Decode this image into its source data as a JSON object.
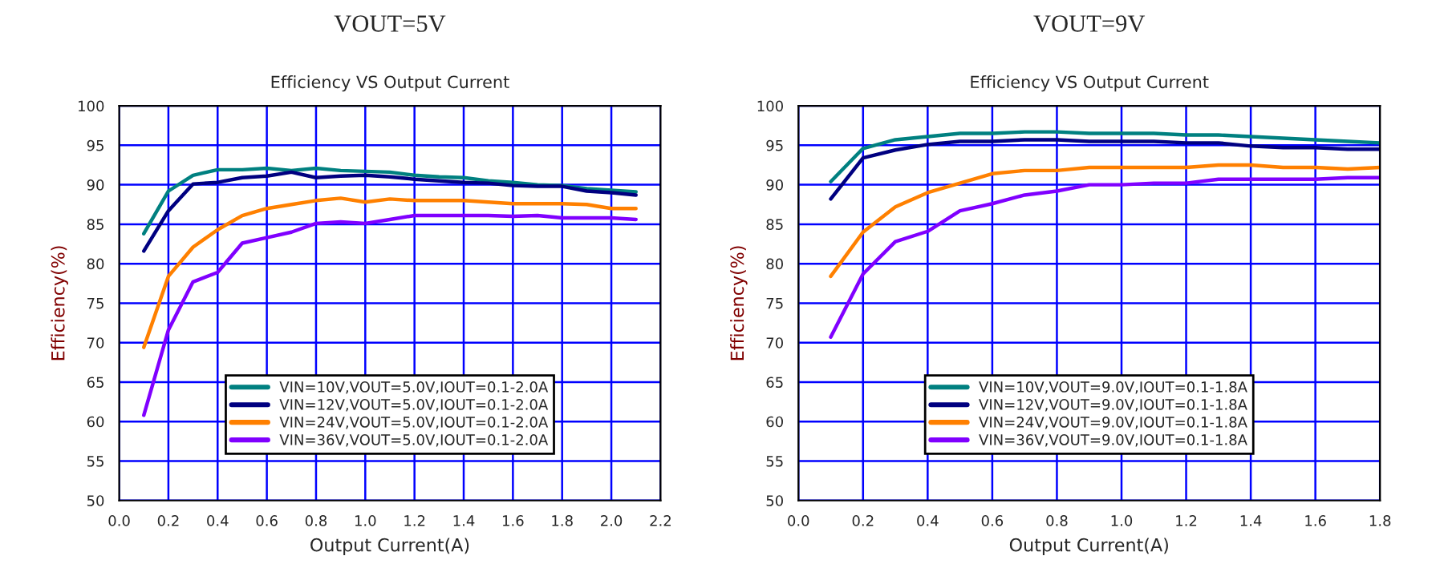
{
  "chart_data": [
    {
      "type": "line",
      "title": "VOUT=5V",
      "subtitle": "Efficiency VS Output Current",
      "xlabel": "Output Current(A)",
      "ylabel": "Efficiency(%)",
      "x": [
        0.1,
        0.2,
        0.3,
        0.4,
        0.5,
        0.6,
        0.7,
        0.8,
        0.9,
        1.0,
        1.1,
        1.2,
        1.3,
        1.4,
        1.5,
        1.6,
        1.7,
        1.8,
        1.9,
        2.0,
        2.1
      ],
      "series": [
        {
          "name": "VIN=10V,VOUT=5.0V,IOUT=0.1-2.0A",
          "color": "#008080",
          "values": [
            83.8,
            89.2,
            91.2,
            91.9,
            91.9,
            92.1,
            91.8,
            92.1,
            91.8,
            91.7,
            91.6,
            91.2,
            91.0,
            90.9,
            90.5,
            90.3,
            90.0,
            89.9,
            89.5,
            89.3,
            89.1
          ]
        },
        {
          "name": "VIN=12V,VOUT=5.0V,IOUT=0.1-2.0A",
          "color": "#000080",
          "values": [
            81.6,
            86.7,
            90.1,
            90.3,
            90.9,
            91.1,
            91.6,
            90.9,
            91.1,
            91.2,
            91.0,
            90.7,
            90.5,
            90.3,
            90.2,
            89.9,
            89.8,
            89.8,
            89.2,
            89.0,
            88.7
          ]
        },
        {
          "name": "VIN=24V,VOUT=5.0V,IOUT=0.1-2.0A",
          "color": "#ff8000",
          "values": [
            69.4,
            78.4,
            82.1,
            84.3,
            86.1,
            87.0,
            87.5,
            88.0,
            88.3,
            87.8,
            88.2,
            88.0,
            88.0,
            88.0,
            87.8,
            87.6,
            87.6,
            87.6,
            87.5,
            87.0,
            87.0
          ]
        },
        {
          "name": "VIN=36V,VOUT=5.0V,IOUT=0.1-2.0A",
          "color": "#8000ff",
          "values": [
            60.8,
            71.6,
            77.7,
            78.9,
            82.6,
            83.3,
            84.0,
            85.1,
            85.3,
            85.1,
            85.6,
            86.1,
            86.1,
            86.1,
            86.1,
            86.0,
            86.1,
            85.8,
            85.8,
            85.8,
            85.6
          ]
        }
      ],
      "xlim": [
        0,
        2.2
      ],
      "xticks": [
        {
          "value": 0,
          "label": "0.0"
        },
        {
          "value": 0.2,
          "label": "0.2"
        },
        {
          "value": 0.4,
          "label": "0.4"
        },
        {
          "value": 0.6,
          "label": "0.6"
        },
        {
          "value": 0.8,
          "label": "0.8"
        },
        {
          "value": 1.0,
          "label": "1.0"
        },
        {
          "value": 1.2,
          "label": "1.2"
        },
        {
          "value": 1.4,
          "label": "1.4"
        },
        {
          "value": 1.6,
          "label": "1.6"
        },
        {
          "value": 1.8,
          "label": "1.8"
        },
        {
          "value": 2.0,
          "label": "2.0"
        },
        {
          "value": 2.2,
          "label": "2.2"
        }
      ],
      "ylim": [
        50,
        100
      ],
      "yticks": [
        50,
        55,
        60,
        65,
        70,
        75,
        80,
        85,
        90,
        95,
        100
      ],
      "grid": true,
      "legend": "bottom",
      "marker": "none",
      "line_style": "solid"
    },
    {
      "type": "line",
      "title": "VOUT=9V",
      "subtitle": "Efficiency VS Output Current",
      "xlabel": "Output Current(A)",
      "ylabel": "Efficiency(%)",
      "x": [
        0.1,
        0.2,
        0.3,
        0.4,
        0.5,
        0.6,
        0.7,
        0.8,
        0.9,
        1.0,
        1.1,
        1.2,
        1.3,
        1.4,
        1.5,
        1.6,
        1.7,
        1.8
      ],
      "series": [
        {
          "name": "VIN=10V,VOUT=9.0V,IOUT=0.1-1.8A",
          "color": "#008080",
          "values": [
            90.4,
            94.6,
            95.7,
            96.1,
            96.5,
            96.5,
            96.7,
            96.7,
            96.5,
            96.5,
            96.5,
            96.3,
            96.3,
            96.1,
            95.9,
            95.7,
            95.5,
            95.3
          ]
        },
        {
          "name": "VIN=12V,VOUT=9.0V,IOUT=0.1-1.8A",
          "color": "#000080",
          "values": [
            88.2,
            93.4,
            94.4,
            95.1,
            95.5,
            95.5,
            95.7,
            95.7,
            95.5,
            95.5,
            95.5,
            95.3,
            95.3,
            94.9,
            94.7,
            94.7,
            94.5,
            94.5
          ]
        },
        {
          "name": "VIN=24V,VOUT=9.0V,IOUT=0.1-1.8A",
          "color": "#ff8000",
          "values": [
            78.4,
            84.0,
            87.2,
            89.0,
            90.2,
            91.4,
            91.8,
            91.8,
            92.2,
            92.2,
            92.2,
            92.2,
            92.5,
            92.5,
            92.2,
            92.2,
            92.0,
            92.2
          ]
        },
        {
          "name": "VIN=36V,VOUT=9.0V,IOUT=0.1-1.8A",
          "color": "#8000ff",
          "values": [
            70.7,
            78.7,
            82.8,
            84.1,
            86.7,
            87.6,
            88.7,
            89.2,
            90.0,
            90.0,
            90.2,
            90.2,
            90.7,
            90.7,
            90.7,
            90.7,
            90.9,
            90.9
          ]
        }
      ],
      "xlim": [
        0,
        1.8
      ],
      "xticks": [
        {
          "value": 0,
          "label": "0.0"
        },
        {
          "value": 0.2,
          "label": "0.2"
        },
        {
          "value": 0.4,
          "label": "0.4"
        },
        {
          "value": 0.6,
          "label": "0.6"
        },
        {
          "value": 0.8,
          "label": "0.8"
        },
        {
          "value": 1.0,
          "label": "1.0"
        },
        {
          "value": 1.2,
          "label": "1.2"
        },
        {
          "value": 1.4,
          "label": "1.4"
        },
        {
          "value": 1.6,
          "label": "1.6"
        },
        {
          "value": 1.8,
          "label": "1.8"
        }
      ],
      "ylim": [
        50,
        100
      ],
      "yticks": [
        50,
        55,
        60,
        65,
        70,
        75,
        80,
        85,
        90,
        95,
        100
      ],
      "grid": true,
      "legend": "bottom",
      "marker": "none",
      "line_style": "solid"
    }
  ]
}
